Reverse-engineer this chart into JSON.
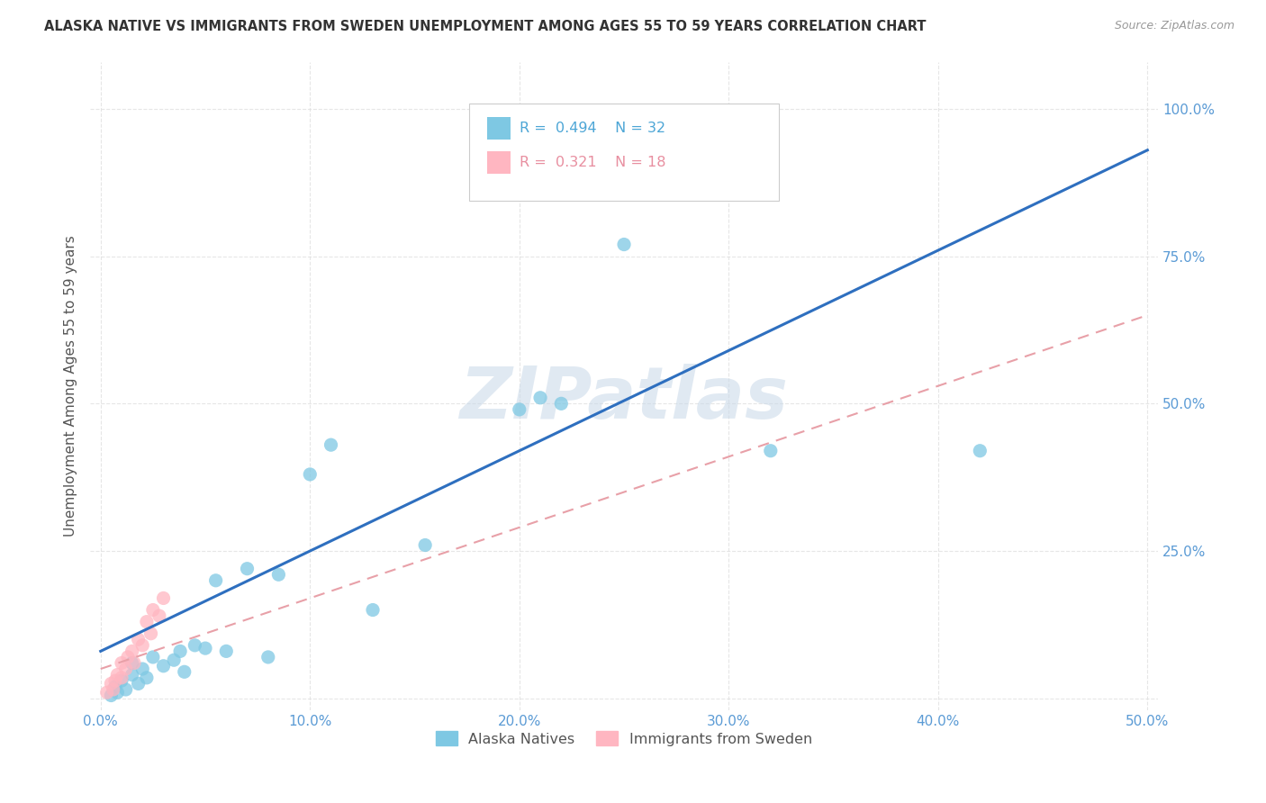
{
  "title": "ALASKA NATIVE VS IMMIGRANTS FROM SWEDEN UNEMPLOYMENT AMONG AGES 55 TO 59 YEARS CORRELATION CHART",
  "source": "Source: ZipAtlas.com",
  "ylabel": "Unemployment Among Ages 55 to 59 years",
  "xlabel": "",
  "xlim": [
    -0.005,
    0.505
  ],
  "ylim": [
    -0.02,
    1.08
  ],
  "xticks": [
    0.0,
    0.1,
    0.2,
    0.3,
    0.4,
    0.5
  ],
  "yticks": [
    0.0,
    0.25,
    0.5,
    0.75,
    1.0
  ],
  "xticklabels": [
    "0.0%",
    "10.0%",
    "20.0%",
    "30.0%",
    "40.0%",
    "50.0%"
  ],
  "yticklabels": [
    "",
    "25.0%",
    "50.0%",
    "75.0%",
    "100.0%"
  ],
  "alaska_native_x": [
    0.005,
    0.007,
    0.008,
    0.01,
    0.012,
    0.015,
    0.015,
    0.018,
    0.02,
    0.022,
    0.025,
    0.03,
    0.035,
    0.038,
    0.04,
    0.045,
    0.05,
    0.055,
    0.06,
    0.07,
    0.08,
    0.085,
    0.1,
    0.11,
    0.13,
    0.155,
    0.2,
    0.21,
    0.22,
    0.25,
    0.32,
    0.42
  ],
  "alaska_native_y": [
    0.005,
    0.02,
    0.01,
    0.03,
    0.015,
    0.04,
    0.06,
    0.025,
    0.05,
    0.035,
    0.07,
    0.055,
    0.065,
    0.08,
    0.045,
    0.09,
    0.085,
    0.2,
    0.08,
    0.22,
    0.07,
    0.21,
    0.38,
    0.43,
    0.15,
    0.26,
    0.49,
    0.51,
    0.5,
    0.77,
    0.42,
    0.42
  ],
  "sweden_x": [
    0.003,
    0.005,
    0.006,
    0.007,
    0.008,
    0.01,
    0.01,
    0.012,
    0.013,
    0.015,
    0.016,
    0.018,
    0.02,
    0.022,
    0.024,
    0.025,
    0.028,
    0.03
  ],
  "sweden_y": [
    0.01,
    0.025,
    0.015,
    0.03,
    0.04,
    0.035,
    0.06,
    0.05,
    0.07,
    0.08,
    0.06,
    0.1,
    0.09,
    0.13,
    0.11,
    0.15,
    0.14,
    0.17
  ],
  "alaska_color": "#7EC8E3",
  "sweden_color": "#FFB6C1",
  "alaska_line_color": "#2E6FBF",
  "sweden_line_color": "#E8A0A8",
  "alaska_line_x": [
    0.0,
    0.5
  ],
  "alaska_line_y": [
    0.08,
    0.93
  ],
  "sweden_line_x": [
    0.0,
    0.5
  ],
  "sweden_line_y": [
    0.05,
    0.65
  ],
  "R_alaska": 0.494,
  "N_alaska": 32,
  "R_sweden": 0.321,
  "N_sweden": 18,
  "watermark": "ZIPatlas",
  "watermark_color": "#C8D8E8",
  "legend_alaska": "Alaska Natives",
  "legend_sweden": "Immigrants from Sweden",
  "background_color": "#FFFFFF",
  "grid_color": "#E0E0E0"
}
